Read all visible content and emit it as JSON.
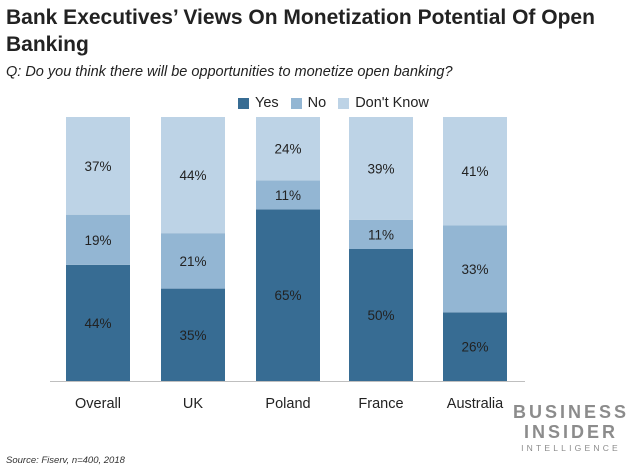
{
  "title": "Bank Executives’ Views On Monetization Potential Of Open Banking",
  "subtitle": "Q: Do you think there will be opportunities to monetize open banking?",
  "source": "Source: Fiserv, n=400, 2018",
  "logo": {
    "line1": "BUSINESS",
    "line2": "INSIDER",
    "line3": "INTELLIGENCE"
  },
  "colors": {
    "Yes": "#376c93",
    "No": "#93b6d3",
    "Don't Know": "#bdd3e6"
  },
  "chart_data": {
    "type": "bar",
    "stacked": true,
    "categories": [
      "Overall",
      "UK",
      "Poland",
      "France",
      "Australia"
    ],
    "series": [
      {
        "name": "Yes",
        "values": [
          44,
          35,
          65,
          50,
          26
        ]
      },
      {
        "name": "No",
        "values": [
          19,
          21,
          11,
          11,
          33
        ]
      },
      {
        "name": "Don't Know",
        "values": [
          37,
          44,
          24,
          39,
          41
        ]
      }
    ],
    "data_labels": [
      [
        "44%",
        "35%",
        "65%",
        "50%",
        "26%"
      ],
      [
        "19%",
        "21%",
        "11%",
        "11%",
        "33%"
      ],
      [
        "37%",
        "44%",
        "24%",
        "39%",
        "41%"
      ]
    ],
    "title": "Bank Executives’ Views On Monetization Potential Of Open Banking",
    "xlabel": "",
    "ylabel": "",
    "ylim": [
      0,
      100
    ],
    "legend_position": "top-center",
    "grid": false
  }
}
